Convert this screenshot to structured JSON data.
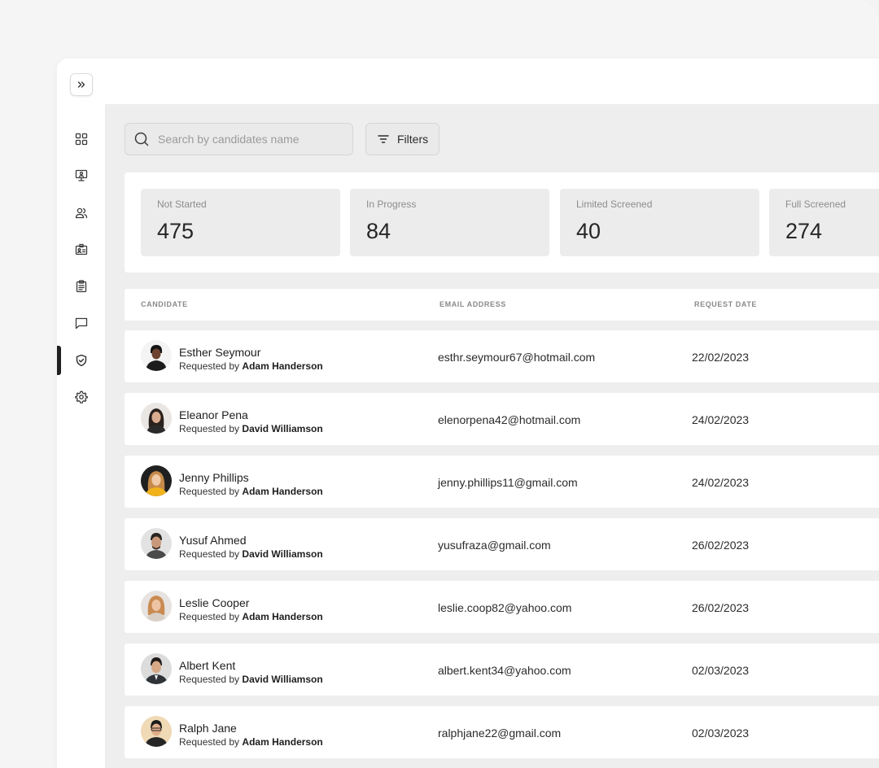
{
  "search": {
    "placeholder": "Search by candidates name"
  },
  "toolbar": {
    "filters_label": "Filters"
  },
  "stats": [
    {
      "label": "Not Started",
      "value": "475"
    },
    {
      "label": "In Progress",
      "value": "84"
    },
    {
      "label": "Limited Screened",
      "value": "40"
    },
    {
      "label": "Full Screened",
      "value": "274"
    }
  ],
  "table": {
    "headers": {
      "candidate": "CANDIDATE",
      "email": "EMAIL ADDRESS",
      "date": "REQUEST DATE"
    },
    "requested_prefix": "Requested by",
    "rows": [
      {
        "name": "Esther Seymour",
        "requested_by": "Adam Handerson",
        "email": "esthr.seymour67@hotmail.com",
        "date": "22/02/2023"
      },
      {
        "name": "Eleanor Pena",
        "requested_by": "David Williamson",
        "email": "elenorpena42@hotmail.com",
        "date": "24/02/2023"
      },
      {
        "name": "Jenny Phillips",
        "requested_by": "Adam Handerson",
        "email": "jenny.phillips11@gmail.com",
        "date": "24/02/2023"
      },
      {
        "name": "Yusuf Ahmed",
        "requested_by": "David Williamson",
        "email": "yusufraza@gmail.com",
        "date": "26/02/2023"
      },
      {
        "name": "Leslie Cooper",
        "requested_by": "Adam Handerson",
        "email": "leslie.coop82@yahoo.com",
        "date": "26/02/2023"
      },
      {
        "name": "Albert Kent",
        "requested_by": "David Williamson",
        "email": "albert.kent34@yahoo.com",
        "date": "02/03/2023"
      },
      {
        "name": "Ralph Jane",
        "requested_by": "Adam Handerson",
        "email": "ralphjane22@gmail.com",
        "date": "02/03/2023"
      }
    ]
  },
  "sidebar": {
    "items": [
      {
        "icon": "dashboard-grid-icon"
      },
      {
        "icon": "monitor-person-icon"
      },
      {
        "icon": "users-icon"
      },
      {
        "icon": "id-card-icon"
      },
      {
        "icon": "clipboard-icon"
      },
      {
        "icon": "chat-icon"
      },
      {
        "icon": "shield-check-icon",
        "active": true
      },
      {
        "icon": "gear-icon"
      }
    ]
  },
  "colors": {
    "main_bg": "#eeeeee",
    "card_bg": "#ececec",
    "active_indicator": "#1f1f1f"
  }
}
